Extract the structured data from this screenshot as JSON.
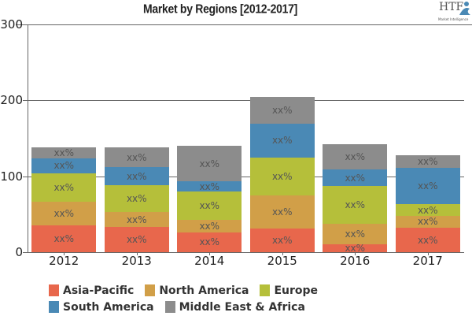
{
  "header": {
    "title": "Market by Regions [2012-2017]",
    "logo_text": "HTF",
    "logo_subtext": "Market Intelligence"
  },
  "chart_data": {
    "type": "bar",
    "stacked": true,
    "title": "Market by Regions [2012-2017]",
    "xlabel": "",
    "ylabel": "",
    "ylim": [
      0,
      300
    ],
    "yticks": [
      0,
      100,
      200,
      300
    ],
    "grid": true,
    "legend_position": "bottom",
    "categories": [
      "2012",
      "2013",
      "2014",
      "2015",
      "2016",
      "2017"
    ],
    "series": [
      {
        "name": "Asia-Pacific",
        "color": "#e8674c",
        "values": [
          35,
          33,
          26,
          31,
          10,
          32
        ],
        "labels": [
          "xx%",
          "xx%",
          "xx%",
          "xx%",
          "xx%",
          "xx%"
        ]
      },
      {
        "name": "North America",
        "color": "#d19f48",
        "values": [
          31,
          20,
          17,
          44,
          27,
          16
        ],
        "labels": [
          "xx%",
          "xx%",
          "xx%",
          "xx%",
          "xx%",
          "xx%"
        ]
      },
      {
        "name": "Europe",
        "color": "#b5bf3a",
        "values": [
          38,
          35,
          37,
          50,
          50,
          15
        ],
        "labels": [
          "xx%",
          "xx%",
          "xx%",
          "xx%",
          "xx%",
          "xx%"
        ]
      },
      {
        "name": "South America",
        "color": "#4a89b5",
        "values": [
          20,
          24,
          13,
          44,
          22,
          48
        ],
        "labels": [
          "xx%",
          "xx%",
          "xx%",
          "xx%",
          "xx%",
          "xx%"
        ]
      },
      {
        "name": "Middle East & Africa",
        "color": "#8c8c8c",
        "values": [
          14,
          26,
          47,
          36,
          33,
          17
        ],
        "labels": [
          "xx%",
          "xx%",
          "xx%",
          "xx%",
          "xx%",
          "xx%"
        ]
      }
    ]
  }
}
